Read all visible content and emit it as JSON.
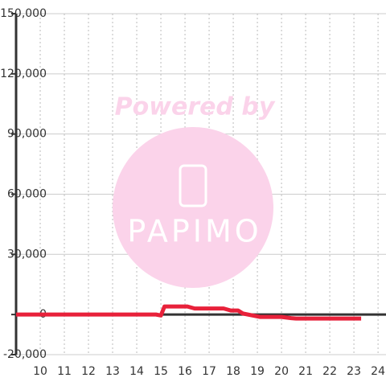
{
  "chart_data": {
    "type": "line",
    "watermark": [
      "Powered by",
      "PAPIMO"
    ],
    "x": [
      9,
      14.8,
      15,
      15.15,
      16.1,
      16.4,
      17.6,
      17.9,
      18.2,
      18.4,
      19.1,
      20.0,
      20.4,
      20.6,
      23.3
    ],
    "series": [
      {
        "color": "#e8213a",
        "values": [
          0,
          0,
          -500,
          4000,
          4000,
          3000,
          3000,
          2000,
          2000,
          500,
          -1200,
          -1200,
          -1800,
          -2000,
          -2000
        ]
      }
    ],
    "xlim": [
      9,
      24.33
    ],
    "xticks": [
      10,
      11,
      12,
      13,
      14,
      15,
      16,
      17,
      18,
      19,
      20,
      21,
      22,
      23,
      24
    ],
    "ylim": [
      -20000,
      150000
    ],
    "yticks": [
      {
        "value": -20000,
        "label": "-20,000"
      },
      0,
      {
        "value": 30000,
        "label": "30,000"
      },
      {
        "value": 60000,
        "label": "60,000"
      },
      {
        "value": 90000,
        "label": "90,000"
      },
      {
        "value": 120000,
        "label": "120,000"
      },
      {
        "value": 150000,
        "label": "150,000"
      }
    ],
    "grid": true
  }
}
